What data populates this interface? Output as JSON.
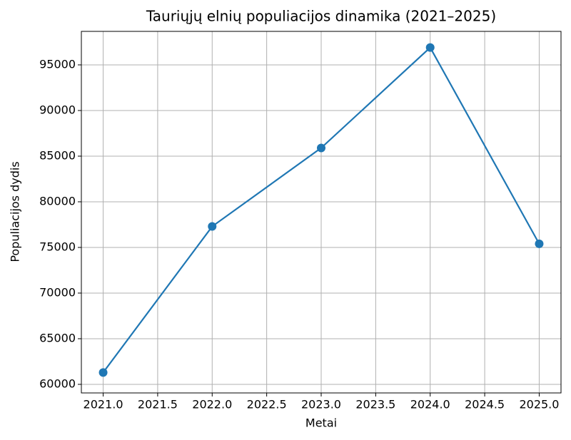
{
  "chart_data": {
    "type": "line",
    "title": "Tauriųjų elnių populiacijos dinamika (2021–2025)",
    "x_label": "Metai",
    "y_label": "Populiacijos dydis",
    "x": [
      2021,
      2022,
      2023,
      2024,
      2025
    ],
    "series": [
      {
        "name": "Populiacijos dydis",
        "color": "#1f77b4",
        "values": [
          61300,
          77300,
          85900,
          96900,
          75400
        ]
      }
    ],
    "xlim": [
      2020.8,
      2025.2
    ],
    "xticks": [
      {
        "value": 2021,
        "label": "2021.0"
      },
      {
        "value": 2021.5,
        "label": "2021.5"
      },
      {
        "value": 2022,
        "label": "2022.0"
      },
      {
        "value": 2022.5,
        "label": "2022.5"
      },
      {
        "value": 2023,
        "label": "2023.0"
      },
      {
        "value": 2023.5,
        "label": "2023.5"
      },
      {
        "value": 2024,
        "label": "2024.0"
      },
      {
        "value": 2024.5,
        "label": "2024.5"
      },
      {
        "value": 2025,
        "label": "2025.0"
      }
    ],
    "ylim": [
      59060,
      98670
    ],
    "yticks": [
      60000,
      65000,
      70000,
      75000,
      80000,
      85000,
      90000,
      95000
    ],
    "grid": true
  }
}
